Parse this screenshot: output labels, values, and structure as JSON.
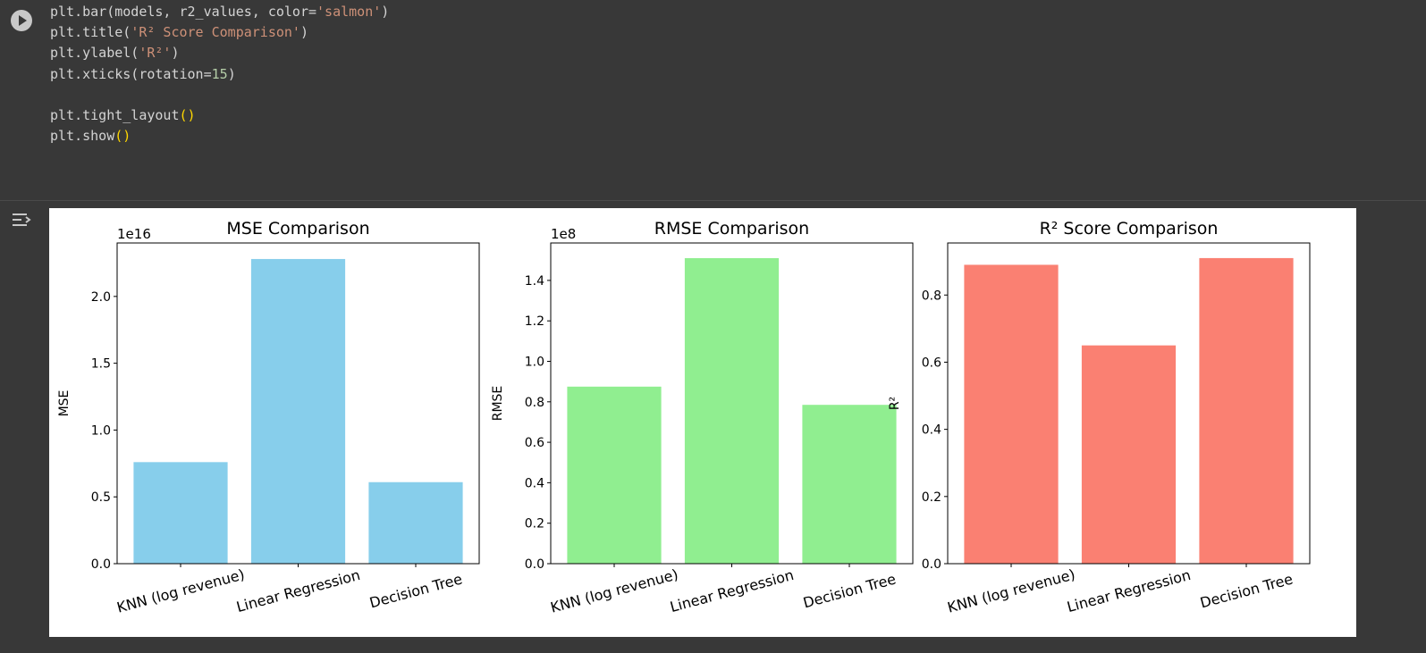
{
  "code_cell": {
    "lines": [
      [
        {
          "t": "plt.bar(models, r2_values, color="
        },
        {
          "t": "'salmon'",
          "c": "str"
        },
        {
          "t": ")"
        }
      ],
      [
        {
          "t": "plt.title("
        },
        {
          "t": "'R² Score Comparison'",
          "c": "str"
        },
        {
          "t": ")"
        }
      ],
      [
        {
          "t": "plt.ylabel("
        },
        {
          "t": "'R²'",
          "c": "str"
        },
        {
          "t": ")"
        }
      ],
      [
        {
          "t": "plt.xticks(rotation="
        },
        {
          "t": "15",
          "c": "num"
        },
        {
          "t": ")"
        }
      ],
      [],
      [
        {
          "t": "plt.tight_layout"
        },
        {
          "t": "()",
          "c": "par"
        }
      ],
      [
        {
          "t": "plt.show"
        },
        {
          "t": "()",
          "c": "par"
        }
      ]
    ]
  },
  "icons": {
    "run": "play-icon",
    "output": "output-toggle-icon"
  },
  "chart_data": [
    {
      "type": "bar",
      "title": "MSE Comparison",
      "ylabel": "MSE",
      "offset_text": "1e16",
      "categories": [
        "KNN (log revenue)",
        "Linear Regression",
        "Decision Tree"
      ],
      "values": [
        0.76,
        2.28,
        0.61
      ],
      "ylim": [
        0,
        2.4
      ],
      "yticks": [
        0.0,
        0.5,
        1.0,
        1.5,
        2.0
      ],
      "ytick_labels": [
        "0.0",
        "0.5",
        "1.0",
        "1.5",
        "2.0"
      ],
      "color": "#87ceeb",
      "xtick_rotation": 15
    },
    {
      "type": "bar",
      "title": "RMSE Comparison",
      "ylabel": "RMSE",
      "offset_text": "1e8",
      "categories": [
        "KNN (log revenue)",
        "Linear Regression",
        "Decision Tree"
      ],
      "values": [
        0.875,
        1.51,
        0.785
      ],
      "ylim": [
        0,
        1.585
      ],
      "yticks": [
        0.0,
        0.2,
        0.4,
        0.6,
        0.8,
        1.0,
        1.2,
        1.4
      ],
      "ytick_labels": [
        "0.0",
        "0.2",
        "0.4",
        "0.6",
        "0.8",
        "1.0",
        "1.2",
        "1.4"
      ],
      "color": "#90ee90",
      "xtick_rotation": 15
    },
    {
      "type": "bar",
      "title": "R² Score Comparison",
      "ylabel": "R²",
      "offset_text": "",
      "categories": [
        "KNN (log revenue)",
        "Linear Regression",
        "Decision Tree"
      ],
      "values": [
        0.89,
        0.65,
        0.91
      ],
      "ylim": [
        0,
        0.955
      ],
      "yticks": [
        0.0,
        0.2,
        0.4,
        0.6,
        0.8
      ],
      "ytick_labels": [
        "0.0",
        "0.2",
        "0.4",
        "0.6",
        "0.8"
      ],
      "color": "#fa8072",
      "xtick_rotation": 15
    }
  ]
}
